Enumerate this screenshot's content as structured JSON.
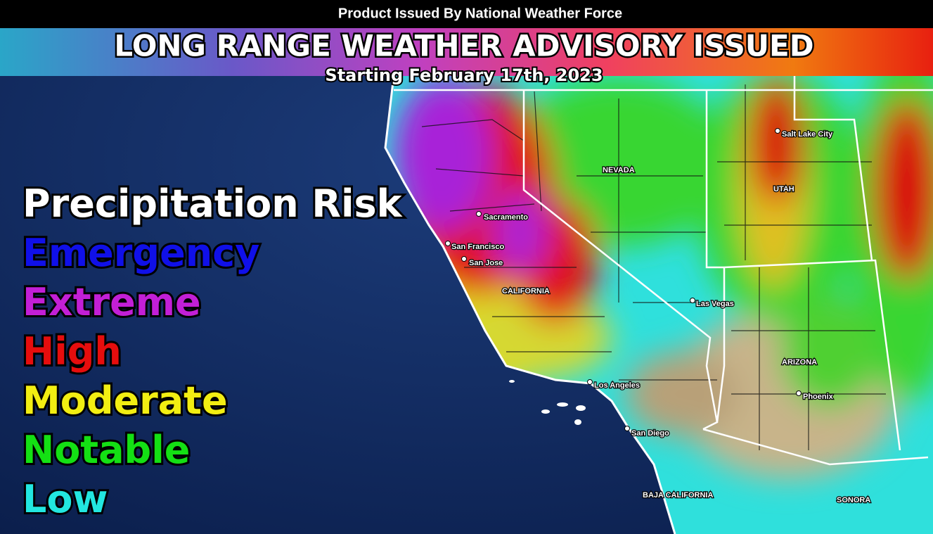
{
  "header": {
    "issuer": "Product Issued By National Weather Force",
    "title": "LONG RANGE WEATHER ADVISORY ISSUED",
    "subtitle": "Starting February 17th, 2023"
  },
  "legend": {
    "title": "Precipitation Risk",
    "items": [
      {
        "label": "Emergency",
        "color": "#1010e8"
      },
      {
        "label": "Extreme",
        "color": "#c21fd6"
      },
      {
        "label": "High",
        "color": "#e60d0d"
      },
      {
        "label": "Moderate",
        "color": "#f2ee12"
      },
      {
        "label": "Notable",
        "color": "#14e014"
      },
      {
        "label": "Low",
        "color": "#22e6e0"
      }
    ]
  },
  "places": {
    "nevada": "NEVADA",
    "utah": "UTAH",
    "salt_lake_city": "Salt Lake City",
    "sacramento": "Sacramento",
    "san_francisco": "San Francisco",
    "san_jose": "San Jose",
    "california": "CALIFORNIA",
    "las_vegas": "Las Vegas",
    "arizona": "ARIZONA",
    "phoenix": "Phoenix",
    "los_angeles": "Los Angeles",
    "san_diego": "San Diego",
    "baja_california": "BAJA CALIFORNIA",
    "sonora": "SONORA"
  }
}
